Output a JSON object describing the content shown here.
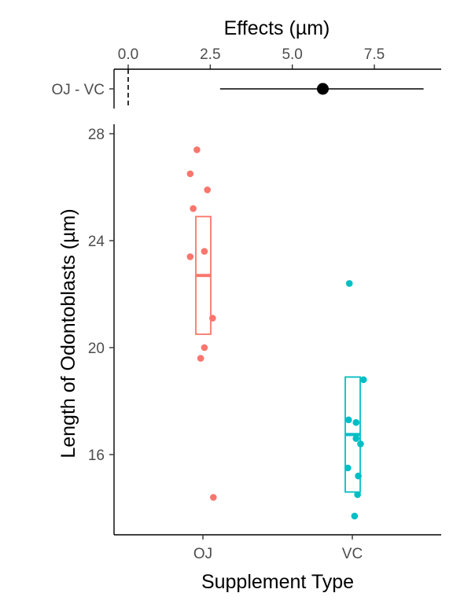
{
  "chart_data": [
    {
      "type": "scatter",
      "panel": "effects",
      "title": "Effects (µm)",
      "xlabel": "Effects (µm)",
      "xticks": [
        0.0,
        2.5,
        5.0,
        7.5
      ],
      "xtick_labels": [
        "0.0",
        "2.5",
        "5.0",
        "7.5"
      ],
      "xlim": [
        -0.5,
        9.4
      ],
      "categories": [
        "OJ - VC"
      ],
      "estimate": 5.93,
      "ci": [
        2.8,
        9.0
      ],
      "reference_line": 0.0
    },
    {
      "type": "scatter",
      "panel": "main",
      "xlabel": "Supplement Type",
      "ylabel": "Length of Odontoblasts (µm)",
      "categories": [
        "OJ",
        "VC"
      ],
      "ylim": [
        13.0,
        28.0
      ],
      "yticks": [
        16,
        20,
        24,
        28
      ],
      "ytick_labels": [
        "16",
        "20",
        "24",
        "28"
      ],
      "colors": {
        "OJ": "#F8766D",
        "VC": "#00BFC4"
      },
      "series": [
        {
          "name": "OJ",
          "points": [
            {
              "x": 0.83,
              "y": 26.5
            },
            {
              "x": 0.92,
              "y": 27.4
            },
            {
              "x": 0.87,
              "y": 25.2
            },
            {
              "x": 1.06,
              "y": 25.9
            },
            {
              "x": 0.83,
              "y": 23.4
            },
            {
              "x": 1.02,
              "y": 23.6
            },
            {
              "x": 1.13,
              "y": 21.1
            },
            {
              "x": 1.02,
              "y": 20.0
            },
            {
              "x": 0.97,
              "y": 19.6
            },
            {
              "x": 1.14,
              "y": 14.4
            }
          ],
          "mean": 22.7,
          "box": [
            20.5,
            24.9
          ]
        },
        {
          "name": "VC",
          "points": [
            {
              "x": 0.96,
              "y": 22.4
            },
            {
              "x": 1.15,
              "y": 18.8
            },
            {
              "x": 0.95,
              "y": 17.3
            },
            {
              "x": 1.05,
              "y": 17.2
            },
            {
              "x": 1.05,
              "y": 16.6
            },
            {
              "x": 1.11,
              "y": 16.4
            },
            {
              "x": 0.94,
              "y": 15.5
            },
            {
              "x": 1.08,
              "y": 15.2
            },
            {
              "x": 1.07,
              "y": 14.5
            },
            {
              "x": 1.03,
              "y": 13.7
            }
          ],
          "mean": 16.75,
          "box": [
            14.6,
            18.9
          ]
        }
      ]
    }
  ]
}
